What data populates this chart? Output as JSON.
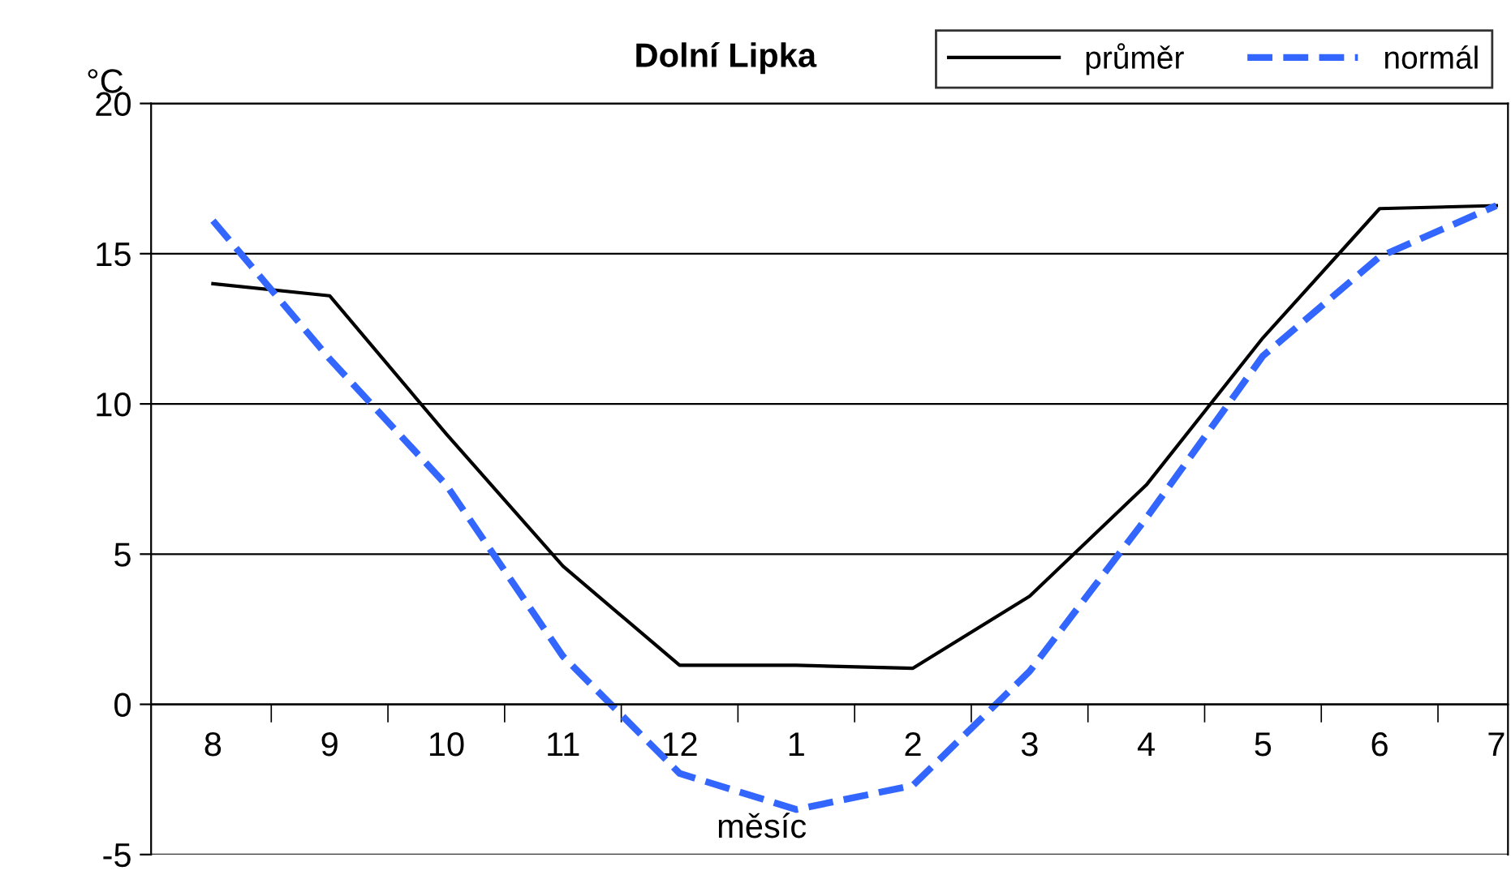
{
  "chart_data": {
    "type": "line",
    "title": "Dolní Lipka",
    "ylabel": "°C",
    "xlabel": "měsíc",
    "categories": [
      "8",
      "9",
      "10",
      "11",
      "12",
      "1",
      "2",
      "3",
      "4",
      "5",
      "6",
      "7"
    ],
    "series": [
      {
        "name": "průměr",
        "color": "#000000",
        "line_style": "solid",
        "values": [
          14.0,
          13.6,
          9.0,
          4.6,
          1.3,
          1.3,
          1.2,
          3.6,
          7.3,
          12.2,
          16.5,
          16.6
        ]
      },
      {
        "name": "normál",
        "color": "#3366ff",
        "line_style": "dashed",
        "values": [
          16.1,
          11.5,
          7.3,
          1.6,
          -2.3,
          -3.5,
          -2.7,
          1.1,
          6.2,
          11.6,
          14.9,
          16.6
        ]
      }
    ],
    "ylim": [
      -5,
      20
    ],
    "yticks": [
      {
        "value": -5,
        "label": "-5"
      },
      0,
      5,
      10,
      15,
      20
    ],
    "grid": "y",
    "legend": "top right",
    "marker": "none"
  }
}
